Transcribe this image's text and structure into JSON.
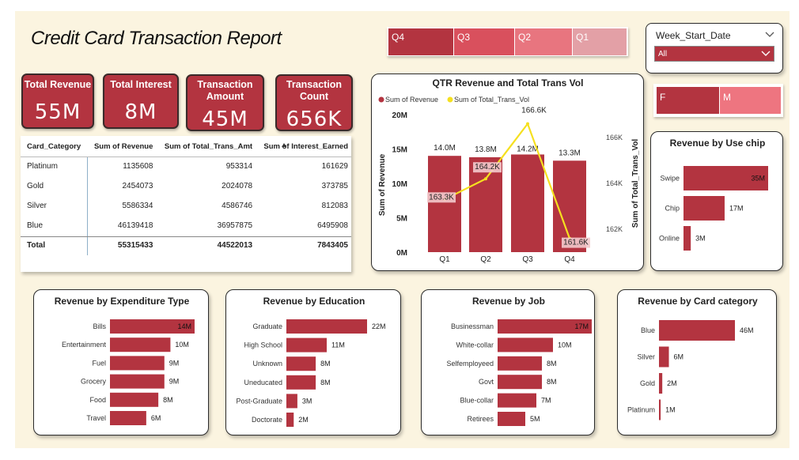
{
  "header": {
    "title": "Credit Card Transaction Report"
  },
  "quarter_slicer": {
    "segments": [
      {
        "label": "Q4",
        "color": "#b33440"
      },
      {
        "label": "Q3",
        "color": "#d9505d"
      },
      {
        "label": "Q2",
        "color": "#e8757f"
      },
      {
        "label": "Q1",
        "color": "#e3a0a6"
      }
    ]
  },
  "week_slicer": {
    "label": "Week_Start_Date",
    "value": "All"
  },
  "gender_slicer": {
    "segments": [
      {
        "label": "F",
        "color": "#b33440"
      },
      {
        "label": "M",
        "color": "#ee7580"
      }
    ]
  },
  "kpis": [
    {
      "title": "Total Revenue",
      "value": "55M"
    },
    {
      "title": "Total Interest",
      "value": "8M"
    },
    {
      "title": "Transaction Amount",
      "value": "45M"
    },
    {
      "title": "Transaction Count",
      "value": "656K"
    }
  ],
  "table": {
    "headers": [
      "Card_Category",
      "Sum of Revenue",
      "Sum of Total_Trans_Amt",
      "Sum of Interest_Earned"
    ],
    "rows": [
      [
        "Platinum",
        "1135608",
        "953314",
        "161629"
      ],
      [
        "Gold",
        "2454073",
        "2024078",
        "373785"
      ],
      [
        "Silver",
        "5586334",
        "4586746",
        "812083"
      ],
      [
        "Blue",
        "46139418",
        "36957875",
        "6495908"
      ]
    ],
    "total": [
      "Total",
      "55315433",
      "44522013",
      "7843405"
    ]
  },
  "chart_data": [
    {
      "id": "qtr",
      "type": "bar",
      "title": "QTR Revenue and Total Trans Vol",
      "categories": [
        "Q1",
        "Q2",
        "Q3",
        "Q4"
      ],
      "series": [
        {
          "name": "Sum of Revenue",
          "type": "bar",
          "axis": "left",
          "color": "#b33440",
          "values": [
            14.0,
            13.8,
            14.2,
            13.3
          ],
          "labels": [
            "14.0M",
            "13.8M",
            "14.2M",
            "13.3M"
          ]
        },
        {
          "name": "Sum of Total_Trans_Vol",
          "type": "line",
          "axis": "right",
          "color": "#f5e020",
          "values": [
            163.3,
            164.2,
            166.6,
            161.6
          ],
          "labels": [
            "163.3K",
            "164.2K",
            "166.6K",
            "161.6K"
          ]
        }
      ],
      "ylabel": "Sum of Revenue",
      "y2label": "Sum of Total_Trans_Vol",
      "ylim": [
        0,
        20
      ],
      "yticks": [
        "0M",
        "5M",
        "10M",
        "15M",
        "20M"
      ],
      "y2lim": [
        161,
        167
      ],
      "y2ticks": [
        "162K",
        "164K",
        "166K"
      ]
    },
    {
      "id": "chip",
      "type": "bar",
      "orientation": "horizontal",
      "title": "Revenue by Use chip",
      "categories": [
        "Swipe",
        "Chip",
        "Online"
      ],
      "values": [
        35,
        17,
        3
      ],
      "labels": [
        "35M",
        "17M",
        "3M"
      ],
      "xlim": [
        0,
        35
      ]
    },
    {
      "id": "exp",
      "type": "bar",
      "orientation": "horizontal",
      "title": "Revenue by Expenditure Type",
      "categories": [
        "Bills",
        "Entertainment",
        "Fuel",
        "Grocery",
        "Food",
        "Travel"
      ],
      "values": [
        14,
        10,
        9,
        9,
        8,
        6
      ],
      "labels": [
        "14M",
        "10M",
        "9M",
        "9M",
        "8M",
        "6M"
      ],
      "xlim": [
        0,
        14
      ]
    },
    {
      "id": "edu",
      "type": "bar",
      "orientation": "horizontal",
      "title": "Revenue by Education",
      "categories": [
        "Graduate",
        "High School",
        "Unknown",
        "Uneducated",
        "Post-Graduate",
        "Doctorate"
      ],
      "values": [
        22,
        11,
        8,
        8,
        3,
        2
      ],
      "labels": [
        "22M",
        "11M",
        "8M",
        "8M",
        "3M",
        "2M"
      ],
      "xlim": [
        0,
        22
      ]
    },
    {
      "id": "job",
      "type": "bar",
      "orientation": "horizontal",
      "title": "Revenue by Job",
      "categories": [
        "Businessman",
        "White-collar",
        "Selfemployeed",
        "Govt",
        "Blue-collar",
        "Retirees"
      ],
      "values": [
        17,
        10,
        8,
        8,
        7,
        5
      ],
      "labels": [
        "17M",
        "10M",
        "8M",
        "8M",
        "7M",
        "5M"
      ],
      "xlim": [
        0,
        17
      ]
    },
    {
      "id": "card",
      "type": "bar",
      "orientation": "horizontal",
      "title": "Revenue by Card category",
      "categories": [
        "Blue",
        "Silver",
        "Gold",
        "Platinum"
      ],
      "values": [
        46,
        6,
        2,
        1
      ],
      "labels": [
        "46M",
        "6M",
        "2M",
        "1M"
      ],
      "xlim": [
        0,
        46
      ]
    }
  ]
}
